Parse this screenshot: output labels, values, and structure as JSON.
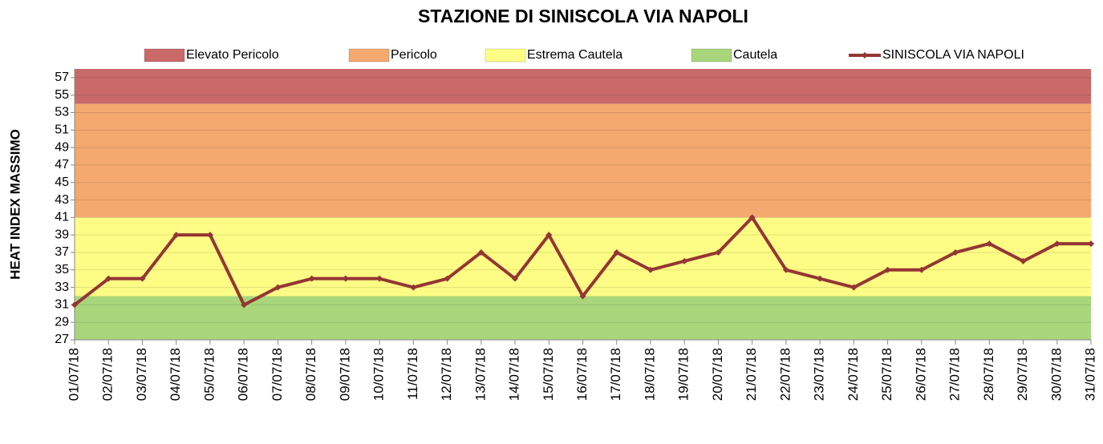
{
  "chart_data": {
    "type": "line",
    "title": "STAZIONE DI SINISCOLA VIA NAPOLI",
    "y_label": "HEAT INDEX MASSIMO",
    "bands": [
      {
        "name": "Elevato Pericolo",
        "color": "#c96a69",
        "from": 54,
        "to": 58
      },
      {
        "name": "Pericolo",
        "color": "#f5a96f",
        "from": 41,
        "to": 54
      },
      {
        "name": "Estrema Cautela",
        "color": "#fdfd85",
        "from": 32,
        "to": 41
      },
      {
        "name": "Cautela",
        "color": "#a9d67b",
        "from": 27,
        "to": 32
      }
    ],
    "categories": [
      "01/07/18",
      "02/07/18",
      "03/07/18",
      "04/07/18",
      "05/07/18",
      "06/07/18",
      "07/07/18",
      "08/07/18",
      "09/07/18",
      "10/07/18",
      "11/07/18",
      "12/07/18",
      "13/07/18",
      "14/07/18",
      "15/07/18",
      "16/07/18",
      "17/07/18",
      "18/07/18",
      "19/07/18",
      "20/07/18",
      "21/07/18",
      "22/07/18",
      "23/07/18",
      "24/07/18",
      "25/07/18",
      "26/07/18",
      "27/07/18",
      "28/07/18",
      "29/07/18",
      "30/07/18",
      "31/07/18"
    ],
    "series": [
      {
        "name": "SINISCOLA VIA NAPOLI",
        "color": "#943634",
        "values": [
          31,
          34,
          34,
          39,
          39,
          31,
          33,
          34,
          34,
          34,
          33,
          34,
          37,
          34,
          39,
          32,
          37,
          35,
          36,
          37,
          41,
          35,
          34,
          33,
          35,
          35,
          37,
          38,
          36,
          38,
          38
        ]
      }
    ],
    "ylim": [
      27,
      58
    ],
    "yticks": [
      27,
      29,
      31,
      33,
      35,
      37,
      39,
      41,
      43,
      45,
      47,
      49,
      51,
      53,
      55,
      57
    ],
    "grid": true
  }
}
